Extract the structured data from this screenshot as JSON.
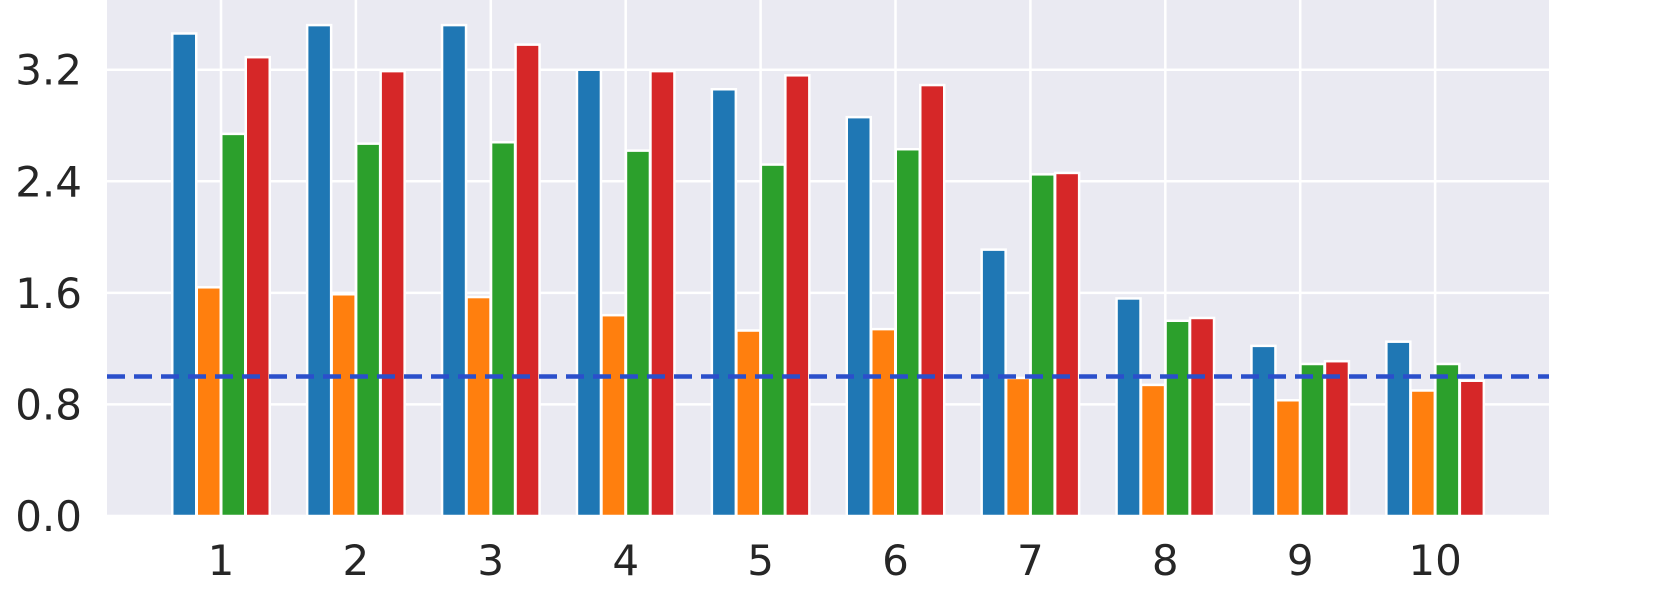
{
  "chart_data": {
    "type": "bar",
    "title": "",
    "xlabel": "",
    "ylabel": "",
    "categories": [
      "1",
      "2",
      "3",
      "4",
      "5",
      "6",
      "7",
      "8",
      "9",
      "10"
    ],
    "y_ticks": [
      "0.0",
      "0.8",
      "1.6",
      "2.4",
      "3.2"
    ],
    "ylim": [
      0,
      3.7
    ],
    "grid": true,
    "reference_line": {
      "value": 1.0,
      "style": "dashed",
      "color": "#2b4fcb"
    },
    "series": [
      {
        "color": "#1f77b4",
        "values": [
          3.46,
          3.52,
          3.52,
          3.2,
          3.06,
          2.86,
          1.91,
          1.56,
          1.22,
          1.25
        ]
      },
      {
        "color": "#ff7f0e",
        "values": [
          1.64,
          1.59,
          1.57,
          1.44,
          1.33,
          1.34,
          0.99,
          0.94,
          0.83,
          0.9
        ]
      },
      {
        "color": "#2ca02c",
        "values": [
          2.74,
          2.67,
          2.68,
          2.62,
          2.52,
          2.63,
          2.45,
          1.4,
          1.09,
          1.09
        ]
      },
      {
        "color": "#d62728",
        "values": [
          3.29,
          3.19,
          3.38,
          3.19,
          3.16,
          3.09,
          2.46,
          1.42,
          1.11,
          0.97
        ]
      }
    ]
  },
  "colors": {
    "plot_background": "#eaeaf2",
    "grid": "#ffffff",
    "bar_edge": "#ffffff"
  }
}
